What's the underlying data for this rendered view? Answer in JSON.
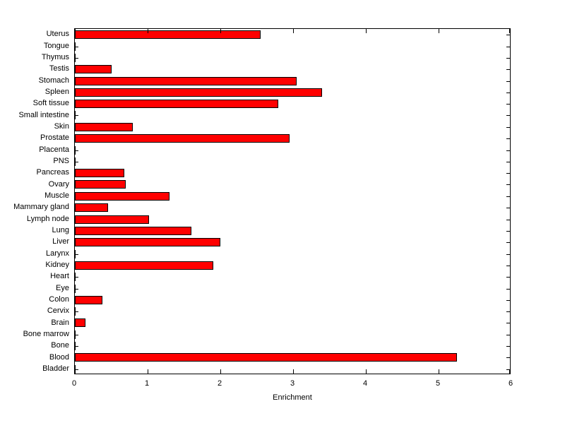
{
  "chart_data": {
    "type": "bar",
    "orientation": "horizontal",
    "title": "",
    "xlabel": "Enrichment",
    "ylabel": "",
    "xlim": [
      0,
      6
    ],
    "xticks": [
      0,
      1,
      2,
      3,
      4,
      5,
      6
    ],
    "grid": false,
    "legend": null,
    "bar_color": "#FF0000",
    "bar_edge_color": "#000000",
    "category_order": "top-to-bottom",
    "categories": [
      "Uterus",
      "Tongue",
      "Thymus",
      "Testis",
      "Stomach",
      "Spleen",
      "Soft tissue",
      "Small intestine",
      "Skin",
      "Prostate",
      "Placenta",
      "PNS",
      "Pancreas",
      "Ovary",
      "Muscle",
      "Mammary gland",
      "Lymph node",
      "Lung",
      "Liver",
      "Larynx",
      "Kidney",
      "Heart",
      "Eye",
      "Colon",
      "Cervix",
      "Brain",
      "Bone marrow",
      "Bone",
      "Blood",
      "Bladder"
    ],
    "values": [
      2.55,
      0,
      0,
      0.5,
      3.05,
      3.4,
      2.8,
      0,
      0.8,
      2.95,
      0,
      0,
      0.68,
      0.7,
      1.3,
      0.46,
      1.02,
      1.6,
      2.0,
      0,
      1.9,
      0,
      0,
      0.38,
      0,
      0.15,
      0,
      0,
      5.25,
      0
    ]
  }
}
